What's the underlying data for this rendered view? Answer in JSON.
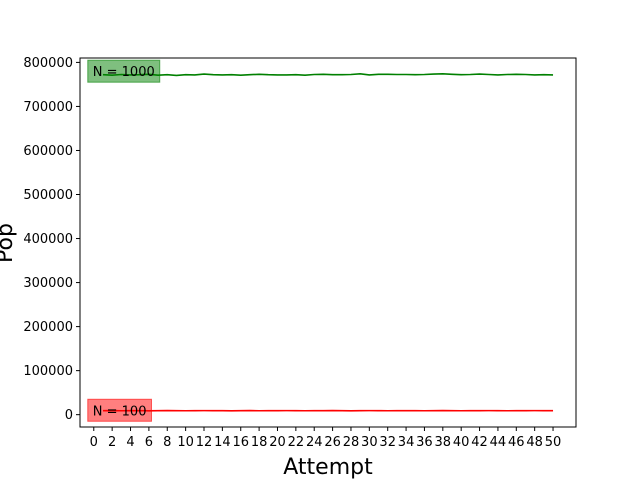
{
  "chart_data": {
    "type": "line",
    "title": "",
    "xlabel": "Attempt",
    "ylabel": "Pop",
    "xlim": [
      -1.5,
      52.5
    ],
    "ylim": [
      -28000,
      810000
    ],
    "xticks": [
      0,
      2,
      4,
      6,
      8,
      10,
      12,
      14,
      16,
      18,
      20,
      22,
      24,
      26,
      28,
      30,
      32,
      34,
      36,
      38,
      40,
      42,
      44,
      46,
      48,
      50
    ],
    "yticks": [
      0,
      100000,
      200000,
      300000,
      400000,
      500000,
      600000,
      700000,
      800000
    ],
    "grid": false,
    "legend": "none",
    "series": [
      {
        "color": "#008000",
        "x": [
          1,
          2,
          3,
          4,
          5,
          6,
          7,
          8,
          9,
          10,
          11,
          12,
          13,
          14,
          15,
          16,
          17,
          18,
          19,
          20,
          21,
          22,
          23,
          24,
          25,
          26,
          27,
          28,
          29,
          30,
          31,
          32,
          33,
          34,
          35,
          36,
          37,
          38,
          39,
          40,
          41,
          42,
          43,
          44,
          45,
          46,
          47,
          48,
          49,
          50
        ],
        "values": [
          772000,
          771000,
          772500,
          771500,
          772000,
          773000,
          771000,
          772000,
          770500,
          772000,
          771500,
          773500,
          772000,
          771500,
          772000,
          771000,
          772000,
          773000,
          772000,
          771500,
          771500,
          772000,
          771000,
          772500,
          773000,
          772000,
          772000,
          772500,
          774000,
          771500,
          773000,
          773000,
          772500,
          772500,
          772000,
          772500,
          773500,
          774000,
          773000,
          772000,
          772500,
          773500,
          772500,
          771500,
          772500,
          773000,
          772500,
          771500,
          772000,
          771500
        ]
      },
      {
        "color": "#ff0000",
        "x": [
          1,
          2,
          3,
          4,
          5,
          6,
          7,
          8,
          9,
          10,
          11,
          12,
          13,
          14,
          15,
          16,
          17,
          18,
          19,
          20,
          21,
          22,
          23,
          24,
          25,
          26,
          27,
          28,
          29,
          30,
          31,
          32,
          33,
          34,
          35,
          36,
          37,
          38,
          39,
          40,
          41,
          42,
          43,
          44,
          45,
          46,
          47,
          48,
          49,
          50
        ],
        "values": [
          9000,
          9300,
          8900,
          9100,
          9200,
          8800,
          9000,
          9400,
          9100,
          8900,
          9000,
          9200,
          9100,
          9000,
          8800,
          9100,
          9300,
          8900,
          9000,
          9100,
          9200,
          9000,
          8900,
          9100,
          9000,
          9300,
          9000,
          8800,
          9100,
          9200,
          9000,
          8900,
          9100,
          9000,
          9200,
          8900,
          9100,
          9300,
          9000,
          8900,
          9100,
          9000,
          9200,
          9100,
          8900,
          9000,
          9100,
          9200,
          9000,
          9100
        ]
      }
    ],
    "annotations": [
      {
        "text": "N = 1000",
        "x": 0,
        "y": 780000,
        "bg": "#008000"
      },
      {
        "text": "N = 100",
        "x": 0,
        "y": 10000,
        "bg": "#ff0000"
      }
    ]
  }
}
